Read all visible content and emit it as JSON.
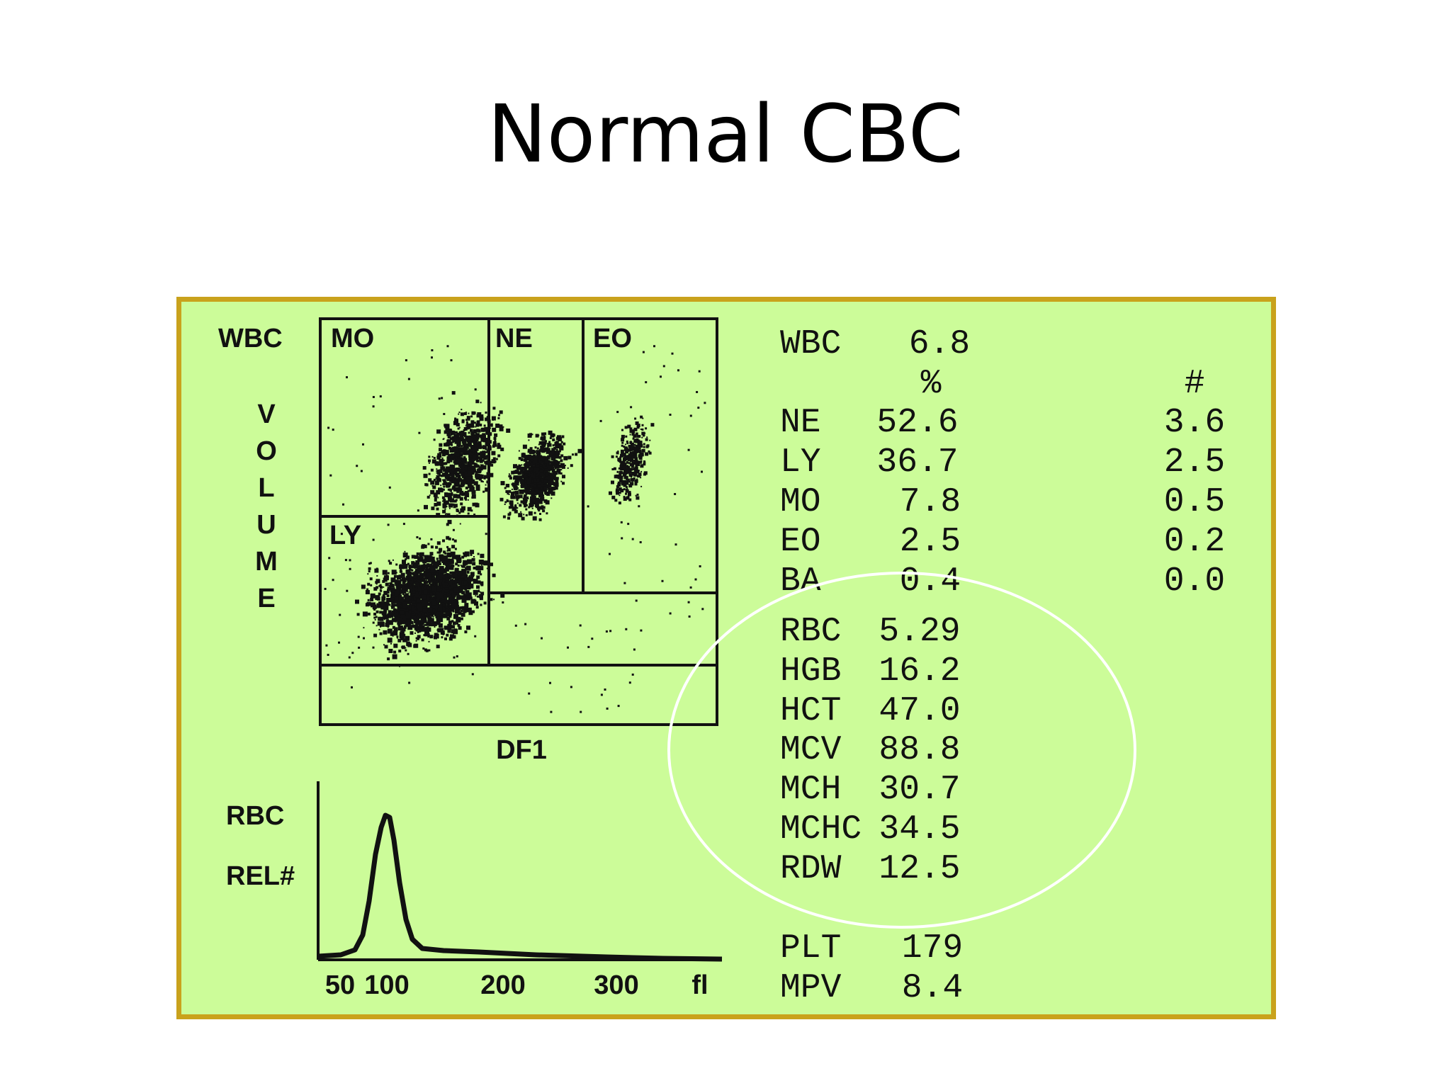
{
  "slide": {
    "title": "Normal CBC"
  },
  "scatterplot": {
    "y_label_top": "WBC",
    "y_label_letters": [
      "V",
      "O",
      "L",
      "U",
      "M",
      "E"
    ],
    "x_label": "DF1",
    "regions": {
      "mo": "MO",
      "ne": "NE",
      "eo": "EO",
      "ly": "LY"
    }
  },
  "histogram": {
    "y_label_1": "RBC",
    "y_label_2": "REL#",
    "ticks": [
      "50",
      "100",
      "200",
      "300",
      "fl"
    ]
  },
  "results": {
    "wbc": {
      "label": "WBC",
      "value": "6.8"
    },
    "col_pct": "%",
    "col_abs": "#",
    "diff": [
      {
        "label": "NE",
        "pct": "52.6",
        "abs": "3.6"
      },
      {
        "label": "LY",
        "pct": "36.7",
        "abs": "2.5"
      },
      {
        "label": "MO",
        "pct": "7.8",
        "abs": "0.5"
      },
      {
        "label": "EO",
        "pct": "2.5",
        "abs": "0.2"
      },
      {
        "label": "BA",
        "pct": "0.4",
        "abs": "0.0"
      }
    ],
    "rbc_indices": [
      {
        "label": "RBC",
        "value": "5.29"
      },
      {
        "label": "HGB",
        "value": "16.2"
      },
      {
        "label": "HCT",
        "value": "47.0"
      },
      {
        "label": "MCV",
        "value": "88.8"
      },
      {
        "label": "MCH",
        "value": "30.7"
      },
      {
        "label": "MCHC",
        "value": "34.5"
      },
      {
        "label": "RDW",
        "value": "12.5"
      }
    ],
    "platelets": [
      {
        "label": "PLT",
        "value": "179"
      },
      {
        "label": "MPV",
        "value": "8.4"
      }
    ]
  },
  "colors": {
    "panel_bg": "#ccfc99",
    "panel_border": "#c9a21c",
    "ink": "#111111",
    "highlight_ring": "#ffffff"
  }
}
